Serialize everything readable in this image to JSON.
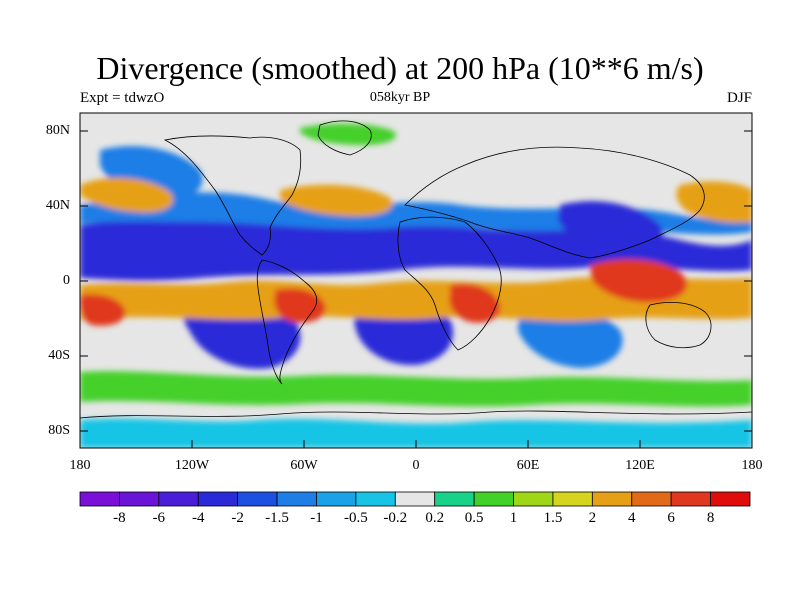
{
  "title": "Divergence (smoothed) at 200 hPa (10**6 m/s)",
  "subtitle_left": "Expt = tdwzO",
  "subtitle_center": "058kyr BP",
  "subtitle_right": "DJF",
  "y_axis_labels": [
    "80N",
    "40N",
    "0",
    "40S",
    "80S"
  ],
  "x_axis_labels": [
    "180",
    "120W",
    "60W",
    "0",
    "60E",
    "120E",
    "180"
  ],
  "colorbar": {
    "labels": [
      "-8",
      "-6",
      "-4",
      "-2",
      "-1.5",
      "-1",
      "-0.5",
      "-0.2",
      "0.2",
      "0.5",
      "1",
      "1.5",
      "2",
      "4",
      "6",
      "8"
    ],
    "colors": [
      "#7a0fd8",
      "#6a14d8",
      "#4a1ed8",
      "#2a2ad8",
      "#1e50e0",
      "#1f7ee6",
      "#1aa2e6",
      "#18c4e6",
      "#e6e6e6",
      "#18d28a",
      "#44d02a",
      "#a0d618",
      "#d6d41e",
      "#e6a018",
      "#e06a18",
      "#e0381e",
      "#e00c0c"
    ]
  },
  "map_colors": {
    "neutral": "#e6e6e6",
    "neg_strong": "#2a2ad8",
    "neg_mid": "#1f7ee6",
    "neg_weak": "#18c4e6",
    "pos_weak": "#44d02a",
    "pos_mid": "#e6a018",
    "pos_strong": "#e0381e"
  }
}
